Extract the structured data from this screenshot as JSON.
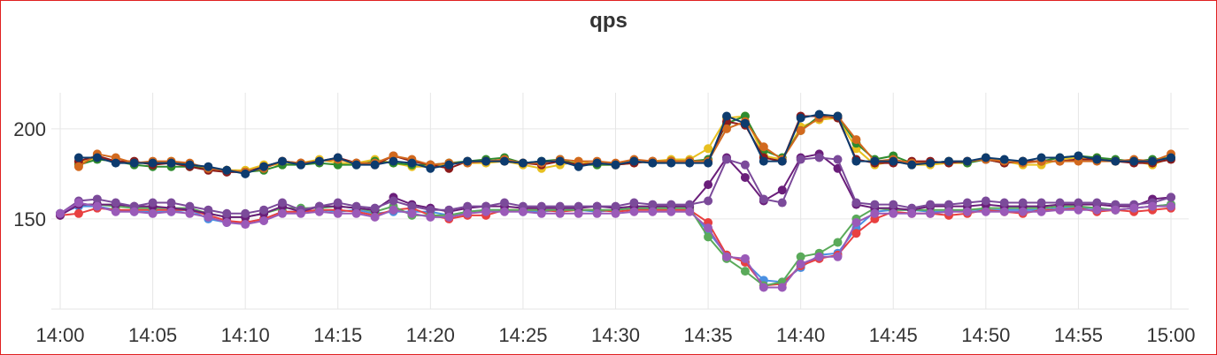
{
  "chart_data": {
    "type": "line",
    "title": "qps",
    "xlabel": "",
    "ylabel": "",
    "x_ticks": [
      "14:00",
      "14:05",
      "14:10",
      "14:15",
      "14:20",
      "14:25",
      "14:30",
      "14:35",
      "14:40",
      "14:45",
      "14:50",
      "14:55",
      "15:00"
    ],
    "y_ticks": [
      150,
      200
    ],
    "xlim": [
      0,
      60
    ],
    "ylim": [
      100,
      220
    ],
    "grid": true,
    "legend": "none",
    "series": [
      {
        "color": "#e8c020",
        "values": [
          null,
          181,
          184,
          182,
          181,
          181,
          182,
          180,
          178,
          177,
          177,
          180,
          180,
          181,
          183,
          181,
          181,
          183,
          181,
          179,
          179,
          181,
          181,
          181,
          182,
          180,
          178,
          180,
          182,
          180,
          180,
          181,
          182,
          183,
          183,
          189,
          206,
          207,
          185,
          183,
          201,
          205,
          206,
          189,
          180,
          182,
          180,
          180,
          181,
          181,
          184,
          182,
          180,
          180,
          183,
          184,
          184,
          182,
          182,
          180,
          184
        ]
      },
      {
        "color": "#2e8b2e",
        "values": [
          null,
          180,
          183,
          182,
          180,
          179,
          179,
          179,
          178,
          177,
          176,
          177,
          180,
          180,
          181,
          180,
          180,
          182,
          181,
          180,
          180,
          181,
          182,
          183,
          184,
          181,
          182,
          183,
          180,
          180,
          180,
          182,
          181,
          182,
          182,
          183,
          203,
          207,
          188,
          184,
          199,
          207,
          207,
          192,
          183,
          185,
          181,
          181,
          182,
          181,
          183,
          181,
          182,
          182,
          184,
          185,
          184,
          183,
          182,
          183,
          184
        ]
      },
      {
        "color": "#8b1a1a",
        "values": [
          null,
          182,
          185,
          182,
          182,
          180,
          181,
          179,
          177,
          176,
          176,
          179,
          182,
          181,
          182,
          184,
          181,
          180,
          185,
          182,
          180,
          178,
          182,
          182,
          182,
          181,
          180,
          182,
          180,
          181,
          180,
          181,
          182,
          182,
          182,
          182,
          204,
          202,
          184,
          182,
          207,
          207,
          206,
          183,
          181,
          181,
          182,
          182,
          181,
          182,
          183,
          181,
          182,
          182,
          182,
          183,
          183,
          182,
          181,
          181,
          183
        ]
      },
      {
        "color": "#d2691e",
        "values": [
          null,
          179,
          186,
          184,
          181,
          182,
          182,
          181,
          178,
          177,
          176,
          178,
          182,
          181,
          182,
          183,
          181,
          181,
          185,
          183,
          180,
          181,
          181,
          182,
          183,
          181,
          181,
          183,
          182,
          182,
          181,
          183,
          182,
          182,
          182,
          182,
          200,
          204,
          190,
          183,
          199,
          206,
          207,
          194,
          182,
          183,
          181,
          181,
          182,
          182,
          183,
          182,
          181,
          182,
          182,
          182,
          182,
          182,
          183,
          182,
          186
        ]
      },
      {
        "color": "#0d3b6e",
        "values": [
          null,
          184,
          184,
          181,
          181,
          181,
          181,
          180,
          179,
          177,
          175,
          179,
          182,
          180,
          182,
          184,
          180,
          180,
          182,
          181,
          178,
          180,
          182,
          182,
          182,
          181,
          182,
          182,
          179,
          181,
          180,
          182,
          181,
          181,
          181,
          181,
          207,
          203,
          182,
          182,
          206,
          208,
          207,
          182,
          182,
          182,
          180,
          181,
          182,
          182,
          184,
          183,
          182,
          184,
          184,
          185,
          183,
          182,
          182,
          182,
          184
        ]
      },
      {
        "color": "#4a90e2",
        "values": [
          153,
          157,
          157,
          155,
          154,
          154,
          154,
          155,
          150,
          148,
          148,
          150,
          154,
          154,
          155,
          154,
          155,
          153,
          154,
          154,
          154,
          152,
          154,
          155,
          155,
          154,
          154,
          155,
          155,
          154,
          155,
          156,
          155,
          155,
          155,
          143,
          130,
          126,
          116,
          115,
          123,
          130,
          131,
          145,
          154,
          155,
          155,
          154,
          154,
          155,
          155,
          155,
          155,
          155,
          156,
          156,
          156,
          155,
          156,
          157,
          158
        ]
      },
      {
        "color": "#e84040",
        "values": [
          152,
          153,
          156,
          155,
          155,
          155,
          155,
          155,
          152,
          149,
          148,
          150,
          154,
          154,
          155,
          155,
          154,
          152,
          155,
          156,
          152,
          150,
          152,
          152,
          155,
          155,
          155,
          154,
          155,
          155,
          154,
          155,
          155,
          155,
          155,
          148,
          130,
          126,
          113,
          114,
          124,
          128,
          130,
          142,
          150,
          154,
          153,
          153,
          152,
          153,
          155,
          154,
          153,
          155,
          155,
          156,
          154,
          155,
          154,
          155,
          156
        ]
      },
      {
        "color": "#5aaa5a",
        "values": [
          153,
          158,
          158,
          157,
          156,
          156,
          156,
          156,
          153,
          151,
          151,
          153,
          156,
          156,
          156,
          157,
          156,
          154,
          157,
          152,
          152,
          152,
          154,
          155,
          155,
          155,
          155,
          155,
          155,
          155,
          155,
          156,
          156,
          156,
          156,
          140,
          128,
          121,
          113,
          115,
          129,
          131,
          137,
          150,
          156,
          155,
          155,
          155,
          155,
          155,
          156,
          156,
          156,
          156,
          157,
          157,
          156,
          155,
          156,
          157,
          158
        ]
      },
      {
        "color": "#6a1e7a",
        "values": [
          152,
          158,
          158,
          158,
          157,
          157,
          156,
          155,
          153,
          151,
          151,
          153,
          157,
          154,
          157,
          157,
          156,
          155,
          162,
          158,
          156,
          154,
          156,
          157,
          157,
          156,
          156,
          156,
          156,
          157,
          156,
          157,
          157,
          157,
          157,
          169,
          184,
          173,
          160,
          166,
          184,
          186,
          178,
          158,
          156,
          156,
          155,
          157,
          157,
          157,
          158,
          157,
          157,
          157,
          158,
          158,
          158,
          157,
          157,
          161,
          162
        ]
      },
      {
        "color": "#7b4a9a",
        "values": [
          153,
          160,
          161,
          159,
          157,
          159,
          159,
          157,
          155,
          153,
          153,
          155,
          159,
          155,
          157,
          159,
          157,
          156,
          160,
          157,
          155,
          155,
          157,
          157,
          159,
          157,
          157,
          157,
          157,
          157,
          157,
          159,
          158,
          158,
          158,
          160,
          183,
          180,
          161,
          159,
          183,
          184,
          183,
          159,
          158,
          158,
          156,
          158,
          158,
          159,
          160,
          159,
          159,
          159,
          159,
          159,
          159,
          158,
          158,
          159,
          162
        ]
      },
      {
        "color": "#9a5ab8",
        "values": [
          153,
          159,
          157,
          154,
          154,
          153,
          154,
          153,
          151,
          148,
          147,
          149,
          153,
          153,
          154,
          153,
          153,
          151,
          155,
          153,
          151,
          151,
          153,
          154,
          154,
          154,
          153,
          153,
          153,
          153,
          153,
          154,
          154,
          154,
          154,
          145,
          129,
          128,
          112,
          112,
          125,
          129,
          129,
          148,
          153,
          153,
          153,
          153,
          154,
          154,
          154,
          154,
          154,
          154,
          155,
          155,
          155,
          155,
          156,
          157,
          157
        ]
      }
    ]
  }
}
